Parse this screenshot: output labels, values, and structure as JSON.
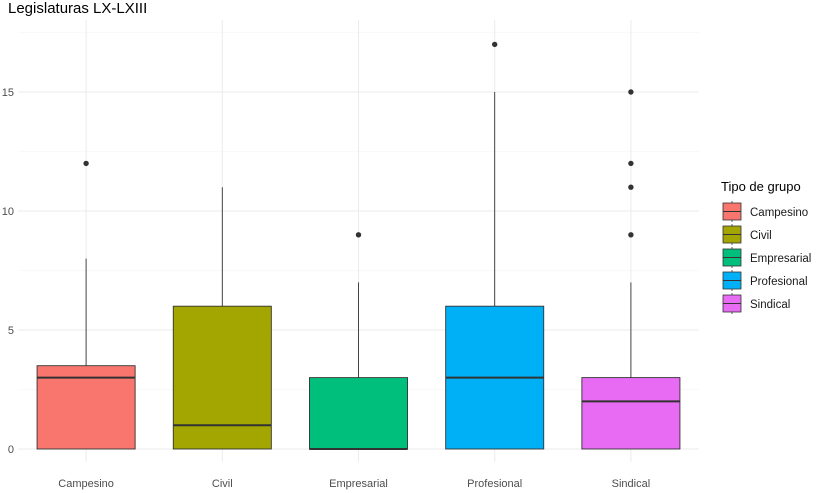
{
  "chart_data": {
    "type": "boxplot",
    "title": "Legislaturas LX-LXIII",
    "xlabel": "",
    "ylabel": "",
    "ylim": [
      -0.7,
      17.9
    ],
    "yticks": [
      0,
      5,
      10,
      15
    ],
    "grid": true,
    "legend": {
      "title": "Tipo de grupo",
      "position": "right"
    },
    "categories": [
      "Campesino",
      "Civil",
      "Empresarial",
      "Profesional",
      "Sindical"
    ],
    "series": [
      {
        "name": "Campesino",
        "color": "#F8766D",
        "min": 0,
        "q1": 0,
        "median": 3,
        "q3": 3.5,
        "max": 8,
        "outliers": [
          12
        ]
      },
      {
        "name": "Civil",
        "color": "#A3A500",
        "min": 0,
        "q1": 0,
        "median": 1,
        "q3": 6,
        "max": 11,
        "outliers": []
      },
      {
        "name": "Empresarial",
        "color": "#00BF7D",
        "min": 0,
        "q1": 0,
        "median": 0,
        "q3": 3,
        "max": 7,
        "outliers": [
          9
        ]
      },
      {
        "name": "Profesional",
        "color": "#00B0F6",
        "min": 0,
        "q1": 0,
        "median": 3,
        "q3": 6,
        "max": 15,
        "outliers": [
          17
        ]
      },
      {
        "name": "Sindical",
        "color": "#E76BF3",
        "min": 0,
        "q1": 0,
        "median": 2,
        "q3": 3,
        "max": 7,
        "outliers": [
          9,
          11,
          12,
          15
        ]
      }
    ]
  }
}
